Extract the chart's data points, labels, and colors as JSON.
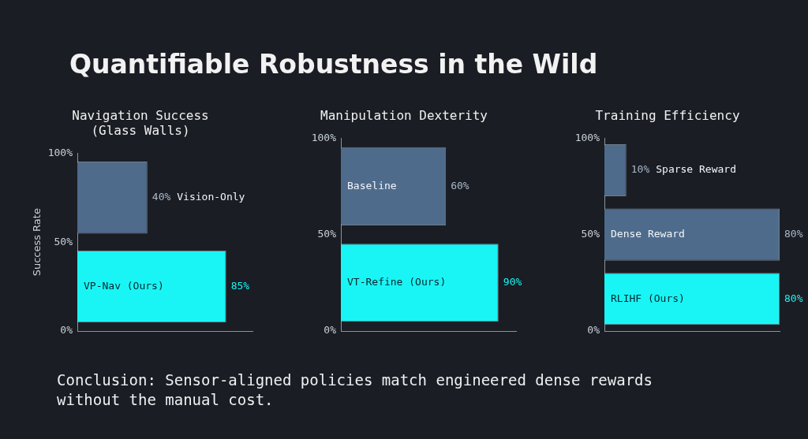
{
  "chart_data": [
    {
      "type": "other",
      "title": "Quantifiable Robustness in the Wild"
    },
    {
      "type": "bar",
      "orientation": "horizontal",
      "title": "Navigation Success (Glass Walls)",
      "ylabel": "Success Rate",
      "categories": [
        "Vision-Only",
        "VP-Nav (Ours)"
      ],
      "values": [
        40,
        85
      ],
      "value_labels": [
        "40%",
        "85%"
      ],
      "colors": [
        "#4f6b8c",
        "#19f5f5"
      ],
      "annotations": [
        "100%",
        "50%",
        "0%"
      ]
    },
    {
      "type": "bar",
      "orientation": "horizontal",
      "title": "Manipulation Dexterity",
      "categories": [
        "Baseline",
        "VT-Refine (Ours)"
      ],
      "values": [
        60,
        90
      ],
      "value_labels": [
        "60%",
        "90%"
      ],
      "colors": [
        "#4f6b8c",
        "#19f5f5"
      ],
      "annotations": [
        "100%",
        "50%",
        "0%"
      ]
    },
    {
      "type": "bar",
      "orientation": "horizontal",
      "title": "Training Efficiency",
      "categories": [
        "Sparse Reward",
        "Dense Reward",
        "RLIHF (Ours)"
      ],
      "values": [
        10,
        80,
        80
      ],
      "value_labels": [
        "10%",
        "80%",
        "80%"
      ],
      "colors": [
        "#4f6b8c",
        "#4f6b8c",
        "#19f5f5"
      ],
      "annotations": [
        "100%",
        "50%",
        "0%"
      ]
    },
    {
      "type": "other",
      "annotations": [
        "Conclusion: Sensor-aligned policies match engineered dense rewards without the manual cost."
      ]
    }
  ]
}
